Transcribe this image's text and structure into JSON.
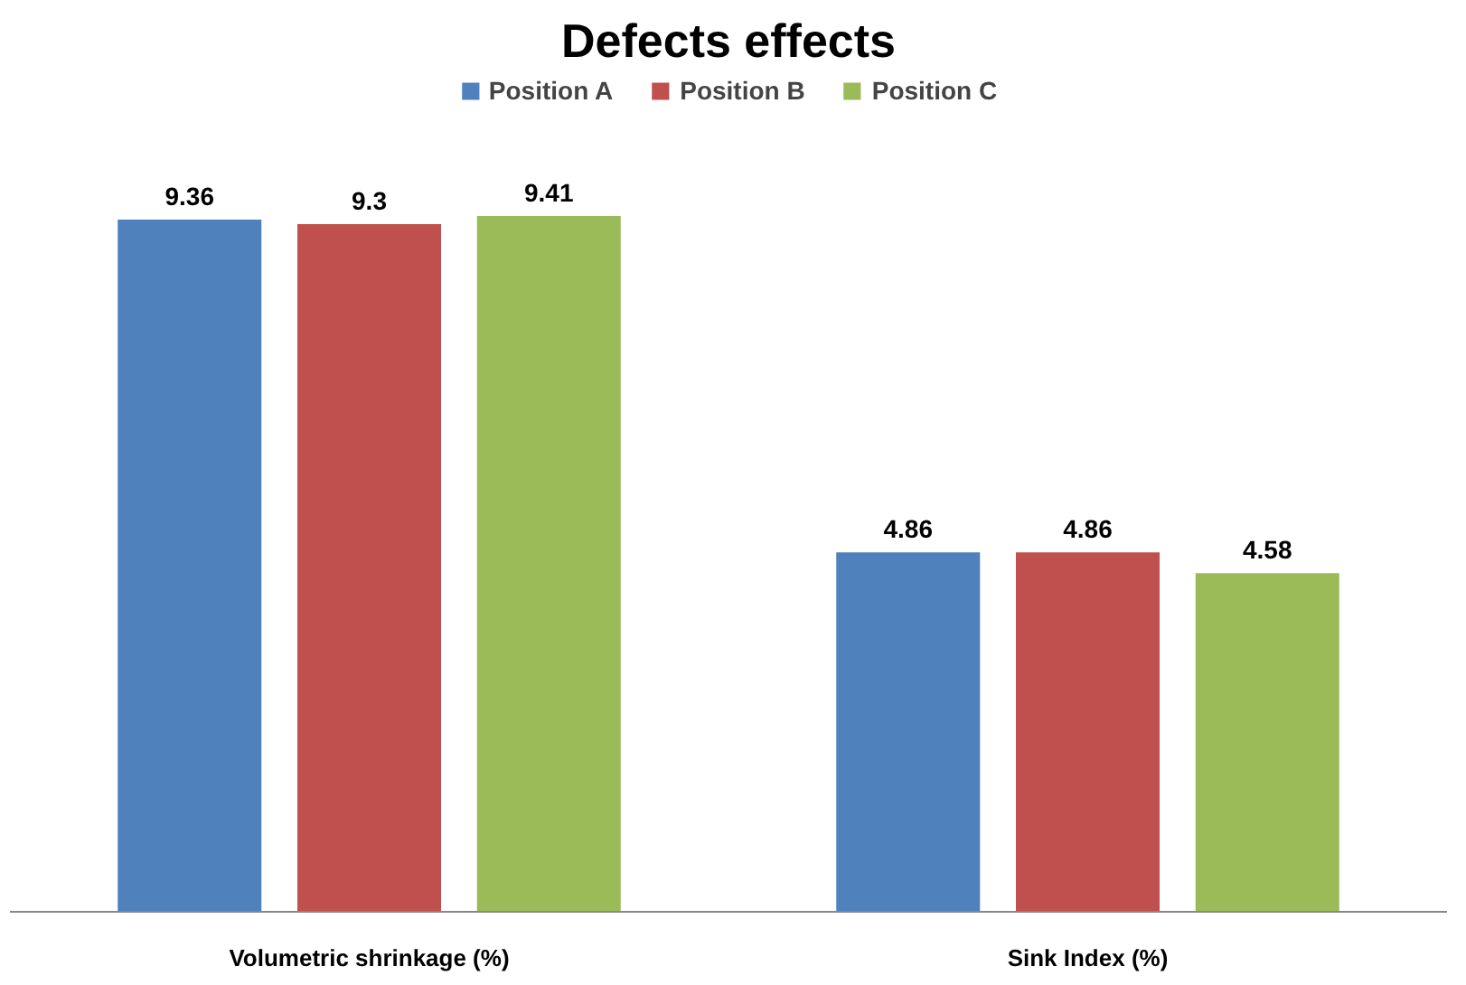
{
  "chart_data": {
    "type": "bar",
    "title": "Defects effects",
    "categories": [
      "Volumetric shrinkage (%)",
      "Sink Index (%)"
    ],
    "series": [
      {
        "name": "Position A",
        "color": "#4f81bd",
        "values": [
          9.36,
          4.86
        ]
      },
      {
        "name": "Position B",
        "color": "#c0504d",
        "values": [
          9.3,
          4.86
        ]
      },
      {
        "name": "Position C",
        "color": "#9bbb59",
        "values": [
          9.41,
          4.58
        ]
      }
    ],
    "data_labels": true,
    "legend": "top"
  }
}
